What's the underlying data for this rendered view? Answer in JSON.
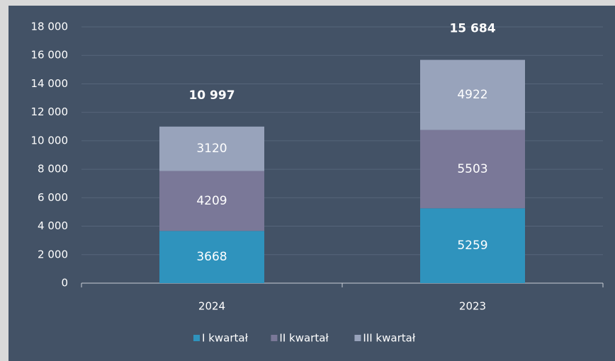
{
  "chart_data": {
    "type": "stacked-bar",
    "categories": [
      "2024",
      "2023"
    ],
    "series": [
      {
        "name": "I kwartał",
        "color": "#2f93bd",
        "values": [
          3668,
          5259
        ]
      },
      {
        "name": "II kwartał",
        "color": "#7a7898",
        "values": [
          4209,
          5503
        ]
      },
      {
        "name": "III kwartał",
        "color": "#98a3bb",
        "values": [
          3120,
          4922
        ]
      }
    ],
    "totals": [
      10997,
      15684
    ],
    "total_labels": [
      "10 997",
      "15 684"
    ],
    "ylim": [
      0,
      18000
    ],
    "yticks": [
      0,
      {
        "value": 2000,
        "label": "2 000"
      },
      {
        "value": 4000,
        "label": "4 000"
      },
      {
        "value": 6000,
        "label": "6 000"
      },
      {
        "value": 8000,
        "label": "8 000"
      },
      {
        "value": 10000,
        "label": "10 000"
      },
      {
        "value": 12000,
        "label": "12 000"
      },
      {
        "value": 14000,
        "label": "14 000"
      },
      {
        "value": 16000,
        "label": "16 000"
      },
      {
        "value": 18000,
        "label": "18 000"
      }
    ],
    "grid": true,
    "legend": "bottom"
  }
}
